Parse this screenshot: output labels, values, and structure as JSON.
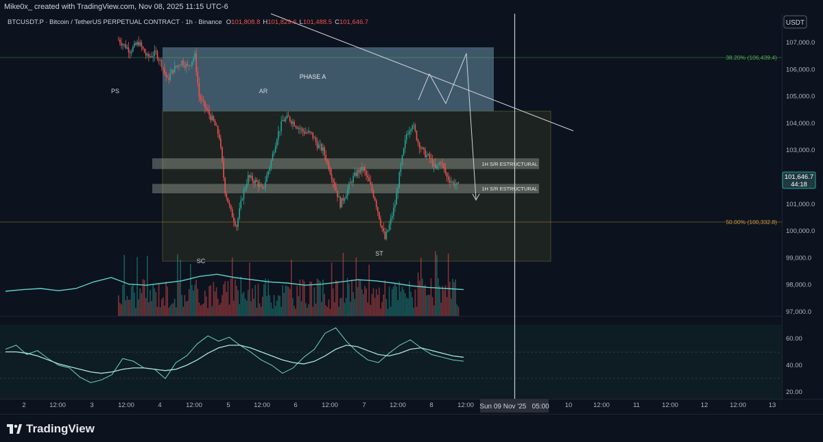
{
  "header": {
    "credit": "Mike0x_ created with TradingView.com, Nov 08, 2025 11:15 UTC-6",
    "symbol": "BTCUSDT.P · Bitcoin / TetherUS PERPETUAL CONTRACT · 1h · Binance",
    "ohlc": {
      "o_label": "O",
      "o": "101,808.8",
      "h_label": "H",
      "h": "101,829.6",
      "l_label": "L",
      "l": "101,488.5",
      "c_label": "C",
      "c": "101,646.7"
    }
  },
  "currency": "USDT",
  "price_badge": {
    "price": "101,646.7",
    "countdown": "44:18"
  },
  "crosshair_date": "Sun 09 Nov '25   05:00",
  "brand": "TradingView",
  "colors": {
    "background": "#0c121e",
    "up": "#26a69a",
    "down": "#ef5350",
    "phase_box": "#5a7e92",
    "range_box": "#5c5e2c",
    "sr_band": "#b9c7b4",
    "fib_382": "#4caf50",
    "fib_50": "#c8963c"
  },
  "chart_data": {
    "type": "candlestick",
    "x_ticks": [
      "2",
      "12:00",
      "3",
      "12:00",
      "4",
      "12:00",
      "5",
      "12:00",
      "6",
      "12:00",
      "7",
      "12:00",
      "8",
      "12:00",
      "10",
      "12:00",
      "11",
      "12:00",
      "12",
      "12:00",
      "13"
    ],
    "y_ticks": [
      "107,000.0",
      "106,000.0",
      "105,000.0",
      "104,000.0",
      "103,000.0",
      "102,000.0",
      "101,000.0",
      "100,000.0",
      "99,000.0",
      "98,000.0",
      "97,000.0"
    ],
    "ylim": [
      96700,
      107300
    ],
    "fib_levels": [
      {
        "label": "38.20% (106,439.4)",
        "price": 106439.4
      },
      {
        "label": "50.00% (100,332.8)",
        "price": 100332.8
      }
    ],
    "annotations": [
      "PHASE A",
      "PS",
      "AR",
      "SC",
      "ST",
      "1H S/R ESTRUCTURAL",
      "1H S/R ESTRUCTURAL"
    ],
    "zones": {
      "phase_a": {
        "top": 106450,
        "bottom": 104450
      },
      "range": {
        "top": 104450,
        "bottom": 98880
      },
      "sr_upper": {
        "top": 102700,
        "bottom": 102300
      },
      "sr_lower": {
        "top": 101750,
        "bottom": 101400
      }
    },
    "close_path": [
      [
        0,
        107100
      ],
      [
        8,
        106700
      ],
      [
        14,
        107000
      ],
      [
        20,
        106450
      ],
      [
        26,
        106600
      ],
      [
        30,
        106200
      ],
      [
        34,
        105600
      ],
      [
        38,
        106000
      ],
      [
        44,
        106300
      ],
      [
        48,
        106100
      ],
      [
        53,
        106500
      ],
      [
        56,
        105000
      ],
      [
        60,
        104600
      ],
      [
        66,
        104050
      ],
      [
        70,
        103500
      ],
      [
        74,
        101500
      ],
      [
        78,
        100700
      ],
      [
        82,
        100200
      ],
      [
        86,
        101300
      ],
      [
        90,
        102000
      ],
      [
        96,
        101800
      ],
      [
        100,
        101500
      ],
      [
        106,
        102600
      ],
      [
        110,
        103500
      ],
      [
        114,
        104100
      ],
      [
        118,
        104200
      ],
      [
        122,
        104000
      ],
      [
        128,
        103700
      ],
      [
        134,
        103600
      ],
      [
        138,
        103200
      ],
      [
        142,
        103000
      ],
      [
        146,
        102400
      ],
      [
        150,
        101700
      ],
      [
        154,
        101000
      ],
      [
        158,
        101400
      ],
      [
        162,
        101900
      ],
      [
        166,
        102200
      ],
      [
        170,
        102300
      ],
      [
        174,
        101800
      ],
      [
        178,
        101200
      ],
      [
        182,
        100300
      ],
      [
        185,
        99700
      ],
      [
        188,
        100200
      ],
      [
        192,
        101000
      ],
      [
        196,
        102400
      ],
      [
        200,
        103600
      ],
      [
        204,
        104000
      ],
      [
        208,
        103300
      ],
      [
        212,
        102900
      ],
      [
        216,
        102700
      ],
      [
        220,
        102300
      ],
      [
        224,
        102600
      ],
      [
        228,
        102000
      ],
      [
        232,
        101800
      ],
      [
        236,
        101647
      ]
    ],
    "volume_ma": [
      0.45,
      0.48,
      0.5,
      0.46,
      0.5,
      0.62,
      0.7,
      0.58,
      0.56,
      0.6,
      0.64,
      0.72,
      0.76,
      0.7,
      0.66,
      0.62,
      0.6,
      0.56,
      0.58,
      0.62,
      0.66,
      0.64,
      0.6,
      0.55,
      0.52,
      0.5,
      0.48
    ],
    "oscillator": {
      "y_ticks": [
        "60.00",
        "40.00",
        "20.00"
      ],
      "ylim": [
        17,
        70
      ],
      "rsi": [
        52,
        55,
        48,
        51,
        45,
        40,
        38,
        31,
        27,
        29,
        33,
        45,
        43,
        38,
        37,
        30,
        42,
        47,
        56,
        62,
        58,
        61,
        55,
        50,
        44,
        40,
        34,
        38,
        46,
        52,
        64,
        68,
        58,
        50,
        44,
        42,
        49,
        55,
        59,
        53,
        48,
        46,
        44,
        43
      ],
      "ma": [
        50,
        50,
        49,
        47,
        44,
        41,
        39,
        37,
        35,
        34,
        35,
        37,
        38,
        38,
        37,
        36,
        37,
        40,
        44,
        49,
        53,
        55,
        55,
        53,
        50,
        47,
        44,
        42,
        41,
        43,
        47,
        52,
        55,
        54,
        51,
        48,
        47,
        49,
        52,
        53,
        51,
        49,
        47,
        46
      ]
    }
  }
}
